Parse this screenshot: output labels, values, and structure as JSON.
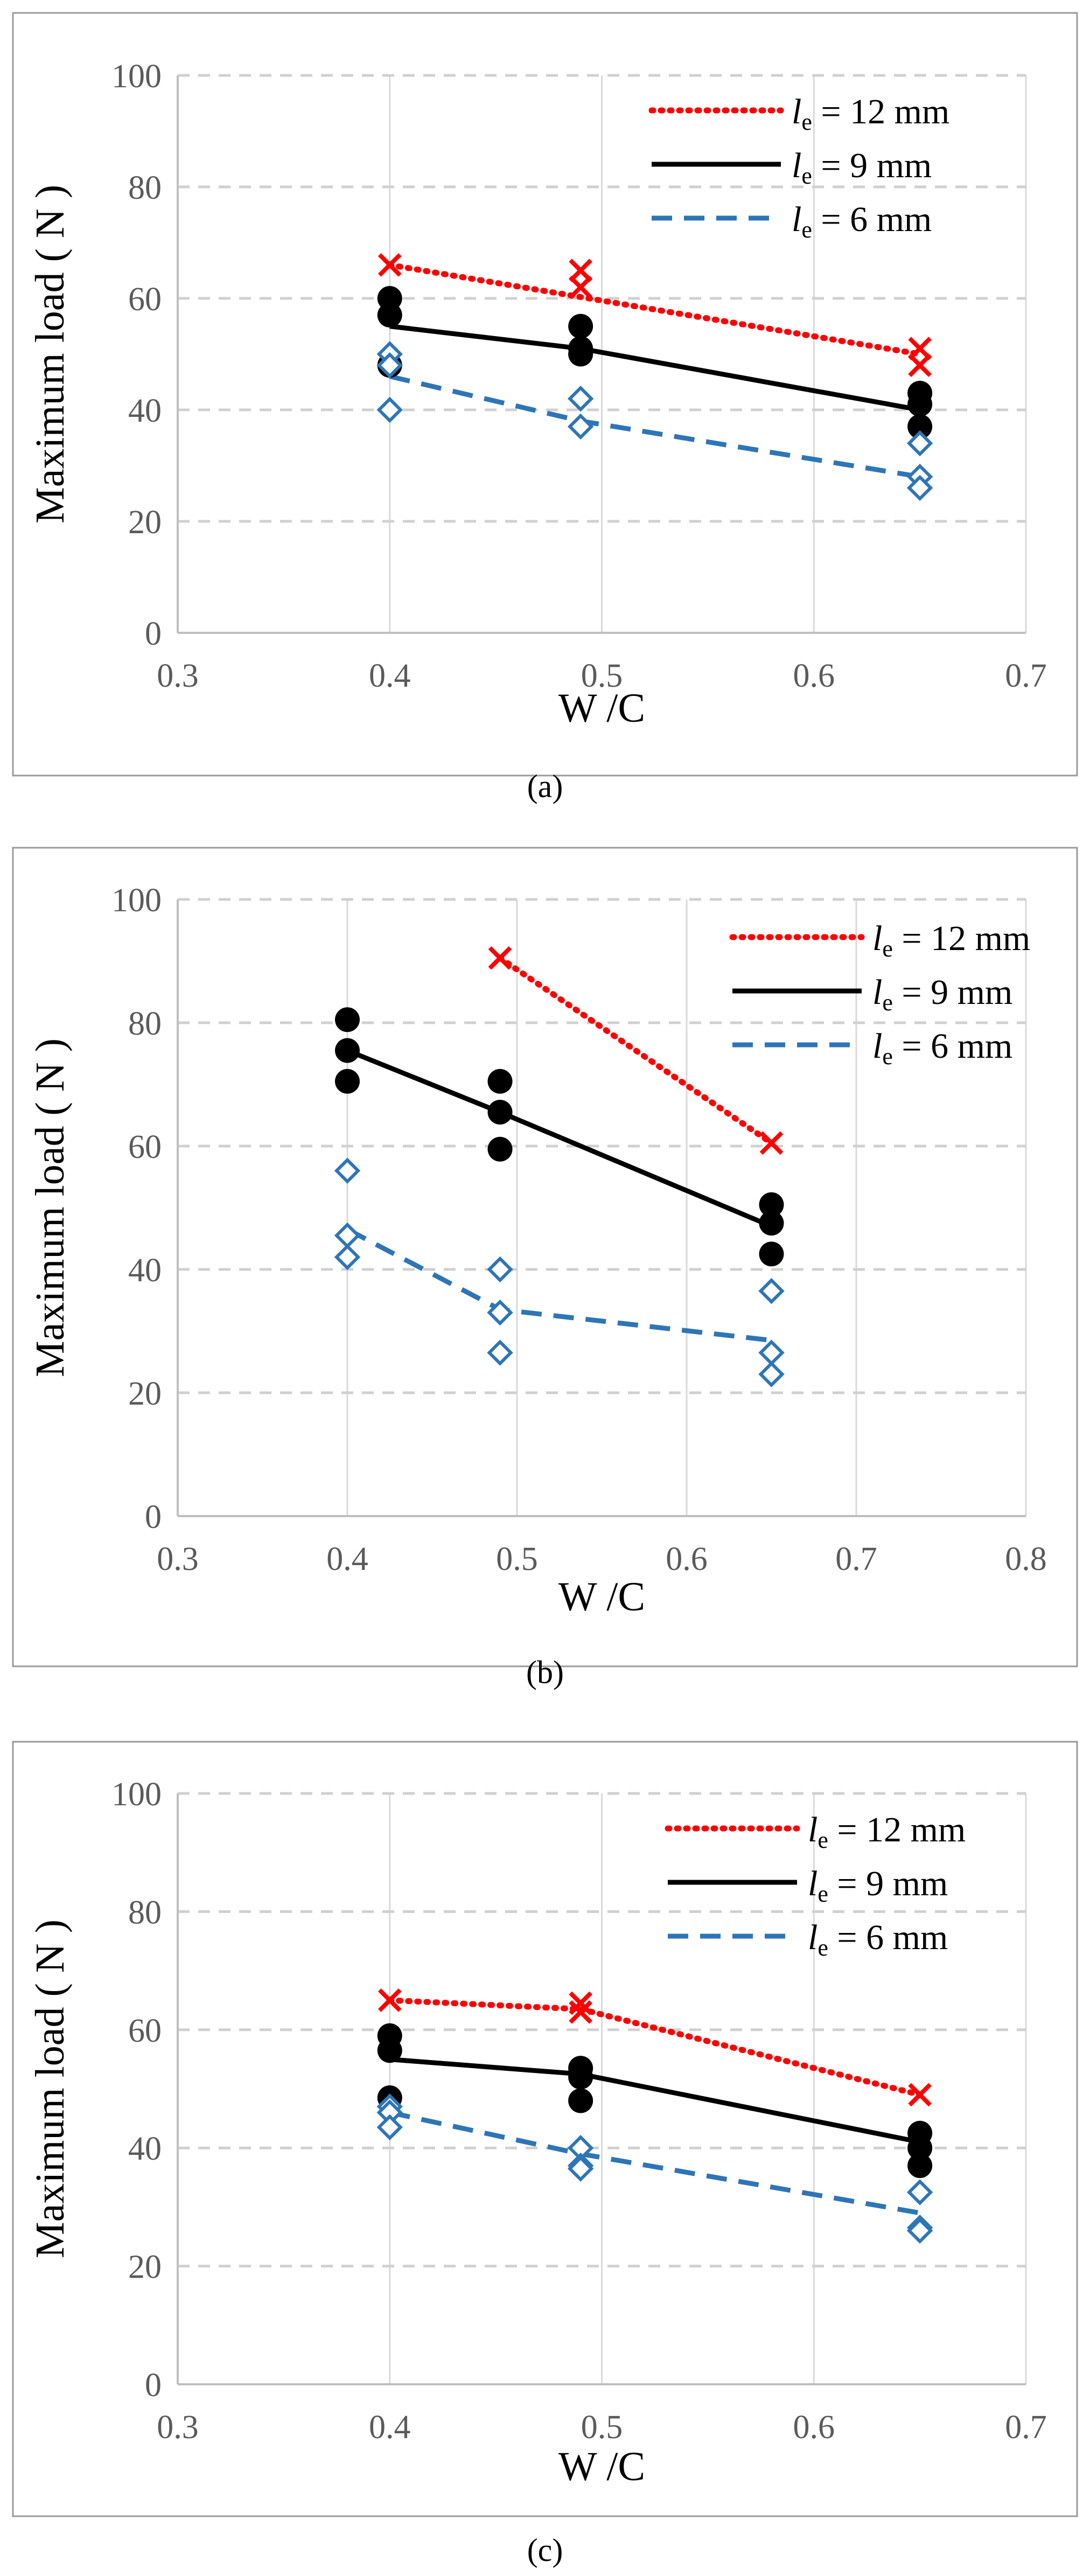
{
  "colors": {
    "le12": "#ff0000",
    "le9": "#000000",
    "le6": "#2e75b6"
  },
  "chart_data": [
    {
      "type": "scatter",
      "caption": "(a)",
      "xlabel": "W /C",
      "ylabel": "Maximum load ( N )",
      "xlim": [
        0.3,
        0.7
      ],
      "ylim": [
        0,
        100
      ],
      "xticks": [
        "0.3",
        "0.4",
        "0.5",
        "0.6",
        "0.7"
      ],
      "yticks": [
        "0",
        "20",
        "40",
        "60",
        "80",
        "100"
      ],
      "legend_position": "top-right",
      "series": [
        {
          "key": "le12",
          "legend_sym": "l",
          "legend_sub": "e",
          "legend_rest": " = 12 mm",
          "marker": "x",
          "line": "dotted",
          "points": [
            [
              0.4,
              66
            ],
            [
              0.49,
              65
            ],
            [
              0.49,
              62
            ],
            [
              0.65,
              51
            ],
            [
              0.65,
              48
            ]
          ],
          "trend": [
            [
              0.4,
              66
            ],
            [
              0.65,
              50
            ]
          ]
        },
        {
          "key": "le9",
          "legend_sym": "l",
          "legend_sub": "e",
          "legend_rest": " = 9 mm",
          "marker": "circle",
          "line": "solid",
          "points": [
            [
              0.4,
              60
            ],
            [
              0.4,
              57
            ],
            [
              0.4,
              48
            ],
            [
              0.49,
              55
            ],
            [
              0.49,
              51
            ],
            [
              0.49,
              50
            ],
            [
              0.65,
              43
            ],
            [
              0.65,
              41
            ],
            [
              0.65,
              37
            ]
          ],
          "trend": [
            [
              0.4,
              55
            ],
            [
              0.49,
              51
            ],
            [
              0.65,
              40
            ]
          ]
        },
        {
          "key": "le6",
          "legend_sym": "l",
          "legend_sub": "e",
          "legend_rest": " = 6 mm",
          "marker": "diamond",
          "line": "dashed",
          "points": [
            [
              0.4,
              50
            ],
            [
              0.4,
              48
            ],
            [
              0.4,
              40
            ],
            [
              0.49,
              42
            ],
            [
              0.49,
              37
            ],
            [
              0.65,
              34
            ],
            [
              0.65,
              28
            ],
            [
              0.65,
              26
            ]
          ],
          "trend": [
            [
              0.4,
              46
            ],
            [
              0.49,
              38
            ],
            [
              0.65,
              28
            ]
          ]
        }
      ]
    },
    {
      "type": "scatter",
      "caption": "(b)",
      "xlabel": "W /C",
      "ylabel": "Maximum load ( N )",
      "xlim": [
        0.3,
        0.8
      ],
      "ylim": [
        0,
        100
      ],
      "xticks": [
        "0.3",
        "0.4",
        "0.5",
        "0.6",
        "0.7",
        "0.8"
      ],
      "yticks": [
        "0",
        "20",
        "40",
        "60",
        "80",
        "100"
      ],
      "legend_position": "top-right",
      "series": [
        {
          "key": "le12",
          "legend_sym": "l",
          "legend_sub": "e",
          "legend_rest": " = 12 mm",
          "marker": "x",
          "line": "dotted",
          "points": [
            [
              0.49,
              90.5
            ],
            [
              0.65,
              60.5
            ]
          ],
          "trend": [
            [
              0.49,
              90.5
            ],
            [
              0.65,
              60.5
            ]
          ]
        },
        {
          "key": "le9",
          "legend_sym": "l",
          "legend_sub": "e",
          "legend_rest": " = 9 mm",
          "marker": "circle",
          "line": "solid",
          "points": [
            [
              0.4,
              80.5
            ],
            [
              0.4,
              75.5
            ],
            [
              0.4,
              70.5
            ],
            [
              0.49,
              70.5
            ],
            [
              0.49,
              65.5
            ],
            [
              0.49,
              59.5
            ],
            [
              0.65,
              50.5
            ],
            [
              0.65,
              47.5
            ],
            [
              0.65,
              42.5
            ]
          ],
          "trend": [
            [
              0.4,
              75.5
            ],
            [
              0.49,
              65.5
            ],
            [
              0.65,
              47
            ]
          ]
        },
        {
          "key": "le6",
          "legend_sym": "l",
          "legend_sub": "e",
          "legend_rest": " = 6 mm",
          "marker": "diamond",
          "line": "dashed",
          "points": [
            [
              0.4,
              56
            ],
            [
              0.4,
              45.5
            ],
            [
              0.4,
              42
            ],
            [
              0.49,
              40
            ],
            [
              0.49,
              33
            ],
            [
              0.49,
              26.5
            ],
            [
              0.65,
              36.5
            ],
            [
              0.65,
              26.5
            ],
            [
              0.65,
              23
            ]
          ],
          "trend": [
            [
              0.4,
              46.5
            ],
            [
              0.49,
              33.5
            ],
            [
              0.65,
              28.5
            ]
          ]
        }
      ]
    },
    {
      "type": "scatter",
      "caption": "(c)",
      "xlabel": "W /C",
      "ylabel": "Maximum load ( N )",
      "xlim": [
        0.3,
        0.7
      ],
      "ylim": [
        0,
        100
      ],
      "xticks": [
        "0.3",
        "0.4",
        "0.5",
        "0.6",
        "0.7"
      ],
      "yticks": [
        "0",
        "20",
        "40",
        "60",
        "80",
        "100"
      ],
      "legend_position": "top-right",
      "series": [
        {
          "key": "le12",
          "legend_sym": "l",
          "legend_sub": "e",
          "legend_rest": " = 12 mm",
          "marker": "x",
          "line": "dotted",
          "points": [
            [
              0.4,
              65
            ],
            [
              0.49,
              64.5
            ],
            [
              0.49,
              63
            ],
            [
              0.65,
              49
            ]
          ],
          "trend": [
            [
              0.4,
              65
            ],
            [
              0.49,
              63.5
            ],
            [
              0.65,
              49
            ]
          ]
        },
        {
          "key": "le9",
          "legend_sym": "l",
          "legend_sub": "e",
          "legend_rest": " = 9 mm",
          "marker": "circle",
          "line": "solid",
          "points": [
            [
              0.4,
              59
            ],
            [
              0.4,
              56.5
            ],
            [
              0.4,
              48.5
            ],
            [
              0.49,
              53.5
            ],
            [
              0.49,
              52
            ],
            [
              0.49,
              48
            ],
            [
              0.65,
              42.5
            ],
            [
              0.65,
              40
            ],
            [
              0.65,
              37
            ]
          ],
          "trend": [
            [
              0.4,
              55
            ],
            [
              0.49,
              52.5
            ],
            [
              0.65,
              41
            ]
          ]
        },
        {
          "key": "le6",
          "legend_sym": "l",
          "legend_sub": "e",
          "legend_rest": " = 6 mm",
          "marker": "diamond",
          "line": "dashed",
          "points": [
            [
              0.4,
              47
            ],
            [
              0.4,
              46
            ],
            [
              0.4,
              43.5
            ],
            [
              0.49,
              40
            ],
            [
              0.49,
              37
            ],
            [
              0.49,
              36.5
            ],
            [
              0.65,
              32.5
            ],
            [
              0.65,
              26.5
            ],
            [
              0.65,
              26
            ]
          ],
          "trend": [
            [
              0.4,
              46
            ],
            [
              0.49,
              39
            ],
            [
              0.65,
              29
            ]
          ]
        }
      ]
    }
  ]
}
